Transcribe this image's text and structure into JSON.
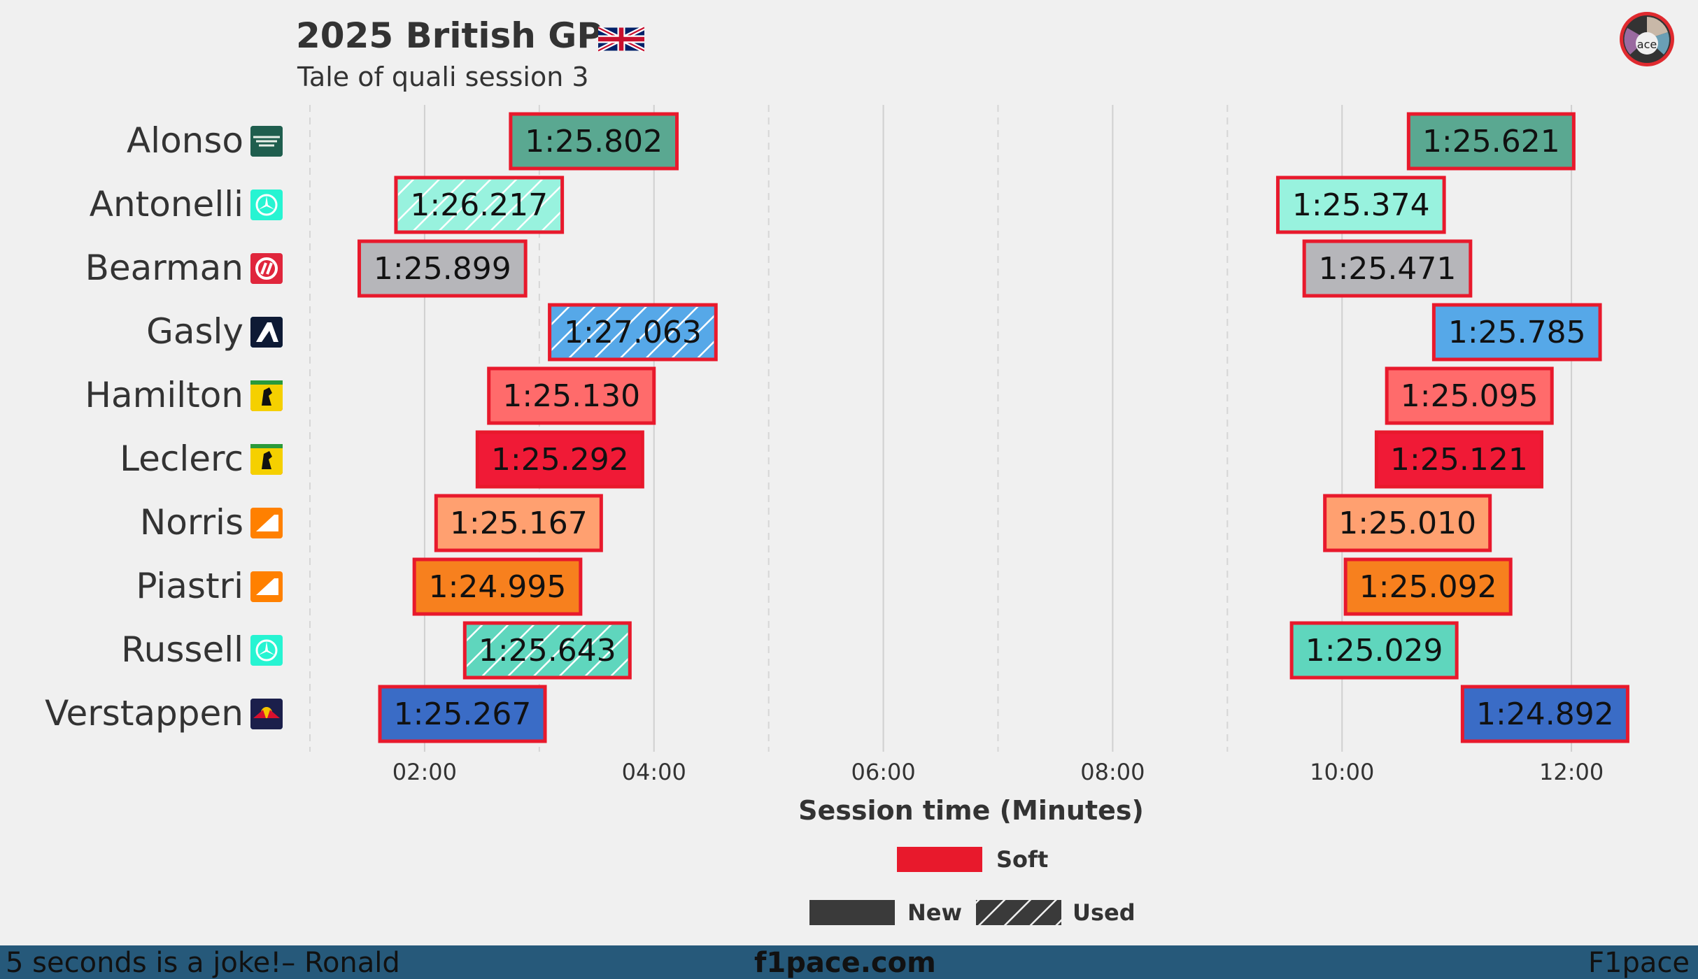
{
  "header": {
    "title": "2025 British GP",
    "subtitle": "Tale of quali session 3"
  },
  "footer": {
    "quote": "5 seconds is a joke!– Ronald",
    "site": "f1pace.com",
    "brand": "F1pace"
  },
  "colors": {
    "background": "#f0f0f0",
    "footer": "#26597a",
    "soft_outline": "#e8192c",
    "tyre_soft": "#e8192c",
    "new_swatch": "#3a3a3a"
  },
  "chart_data": {
    "type": "bar",
    "orientation": "horizontal-timeline",
    "xlabel": "Session time (Minutes)",
    "xlim_minutes": [
      1.0,
      13.0
    ],
    "x_ticks": [
      {
        "value": 2,
        "label": "02:00"
      },
      {
        "value": 4,
        "label": "04:00"
      },
      {
        "value": 6,
        "label": "06:00"
      },
      {
        "value": 8,
        "label": "08:00"
      },
      {
        "value": 10,
        "label": "10:00"
      },
      {
        "value": 12,
        "label": "12:00"
      }
    ],
    "dashed_gridlines_minutes": [
      1,
      3,
      5,
      7,
      9
    ],
    "drivers": [
      {
        "name": "Alonso",
        "team": "aston-martin",
        "team_color": "#2d826d",
        "laps": [
          {
            "start": 2.75,
            "end": 4.2,
            "lap_time": "1:25.802",
            "compound": "Soft",
            "used": false,
            "color": "#5aa891"
          },
          {
            "start": 10.58,
            "end": 12.02,
            "lap_time": "1:25.621",
            "compound": "Soft",
            "used": false,
            "color": "#5aa891"
          }
        ]
      },
      {
        "name": "Antonelli",
        "team": "mercedes",
        "team_color": "#27f4d2",
        "laps": [
          {
            "start": 1.75,
            "end": 3.2,
            "lap_time": "1:26.217",
            "compound": "Soft",
            "used": true,
            "color": "#98f2de"
          },
          {
            "start": 9.44,
            "end": 10.89,
            "lap_time": "1:25.374",
            "compound": "Soft",
            "used": false,
            "color": "#98f2de"
          }
        ]
      },
      {
        "name": "Bearman",
        "team": "haas",
        "team_color": "#b6babd",
        "laps": [
          {
            "start": 1.43,
            "end": 2.88,
            "lap_time": "1:25.899",
            "compound": "Soft",
            "used": false,
            "color": "#b6b6ba"
          },
          {
            "start": 9.67,
            "end": 11.12,
            "lap_time": "1:25.471",
            "compound": "Soft",
            "used": false,
            "color": "#b6b6ba"
          }
        ]
      },
      {
        "name": "Gasly",
        "team": "alpine",
        "team_color": "#0093cc",
        "laps": [
          {
            "start": 3.09,
            "end": 4.54,
            "lap_time": "1:27.063",
            "compound": "Soft",
            "used": true,
            "color": "#56a8e8"
          },
          {
            "start": 10.8,
            "end": 12.25,
            "lap_time": "1:25.785",
            "compound": "Soft",
            "used": false,
            "color": "#56a8e8"
          }
        ]
      },
      {
        "name": "Hamilton",
        "team": "ferrari",
        "team_color": "#e8002d",
        "laps": [
          {
            "start": 2.56,
            "end": 4.0,
            "lap_time": "1:25.130",
            "compound": "Soft",
            "used": false,
            "color": "#ff6b6b"
          },
          {
            "start": 10.39,
            "end": 11.83,
            "lap_time": "1:25.095",
            "compound": "Soft",
            "used": false,
            "color": "#ff6b6b"
          }
        ]
      },
      {
        "name": "Leclerc",
        "team": "ferrari",
        "team_color": "#e8002d",
        "laps": [
          {
            "start": 2.46,
            "end": 3.9,
            "lap_time": "1:25.292",
            "compound": "Soft",
            "used": false,
            "color": "#f01a36"
          },
          {
            "start": 10.3,
            "end": 11.74,
            "lap_time": "1:25.121",
            "compound": "Soft",
            "used": false,
            "color": "#f01a36"
          }
        ]
      },
      {
        "name": "Norris",
        "team": "mclaren",
        "team_color": "#ff8000",
        "laps": [
          {
            "start": 2.1,
            "end": 3.54,
            "lap_time": "1:25.167",
            "compound": "Soft",
            "used": false,
            "color": "#ffa070"
          },
          {
            "start": 9.85,
            "end": 11.29,
            "lap_time": "1:25.010",
            "compound": "Soft",
            "used": false,
            "color": "#ffa070"
          }
        ]
      },
      {
        "name": "Piastri",
        "team": "mclaren",
        "team_color": "#ff8000",
        "laps": [
          {
            "start": 1.91,
            "end": 3.36,
            "lap_time": "1:24.995",
            "compound": "Soft",
            "used": false,
            "color": "#f7801e"
          },
          {
            "start": 10.03,
            "end": 11.47,
            "lap_time": "1:25.092",
            "compound": "Soft",
            "used": false,
            "color": "#f7801e"
          }
        ]
      },
      {
        "name": "Russell",
        "team": "mercedes",
        "team_color": "#27f4d2",
        "laps": [
          {
            "start": 2.35,
            "end": 3.79,
            "lap_time": "1:25.643",
            "compound": "Soft",
            "used": true,
            "color": "#5fd6bd"
          },
          {
            "start": 9.56,
            "end": 11.0,
            "lap_time": "1:25.029",
            "compound": "Soft",
            "used": false,
            "color": "#5fd6bd"
          }
        ]
      },
      {
        "name": "Verstappen",
        "team": "red-bull",
        "team_color": "#3671c6",
        "laps": [
          {
            "start": 1.61,
            "end": 3.05,
            "lap_time": "1:25.267",
            "compound": "Soft",
            "used": false,
            "color": "#3a6cc6"
          },
          {
            "start": 11.05,
            "end": 12.49,
            "lap_time": "1:24.892",
            "compound": "Soft",
            "used": false,
            "color": "#3a6cc6"
          }
        ]
      }
    ],
    "legend": {
      "position": "bottom-center",
      "compound_entries": [
        {
          "label": "Soft",
          "color": "#e8192c"
        }
      ],
      "state_entries": [
        {
          "label": "New",
          "style": "solid"
        },
        {
          "label": "Used",
          "style": "hatched"
        }
      ]
    }
  }
}
